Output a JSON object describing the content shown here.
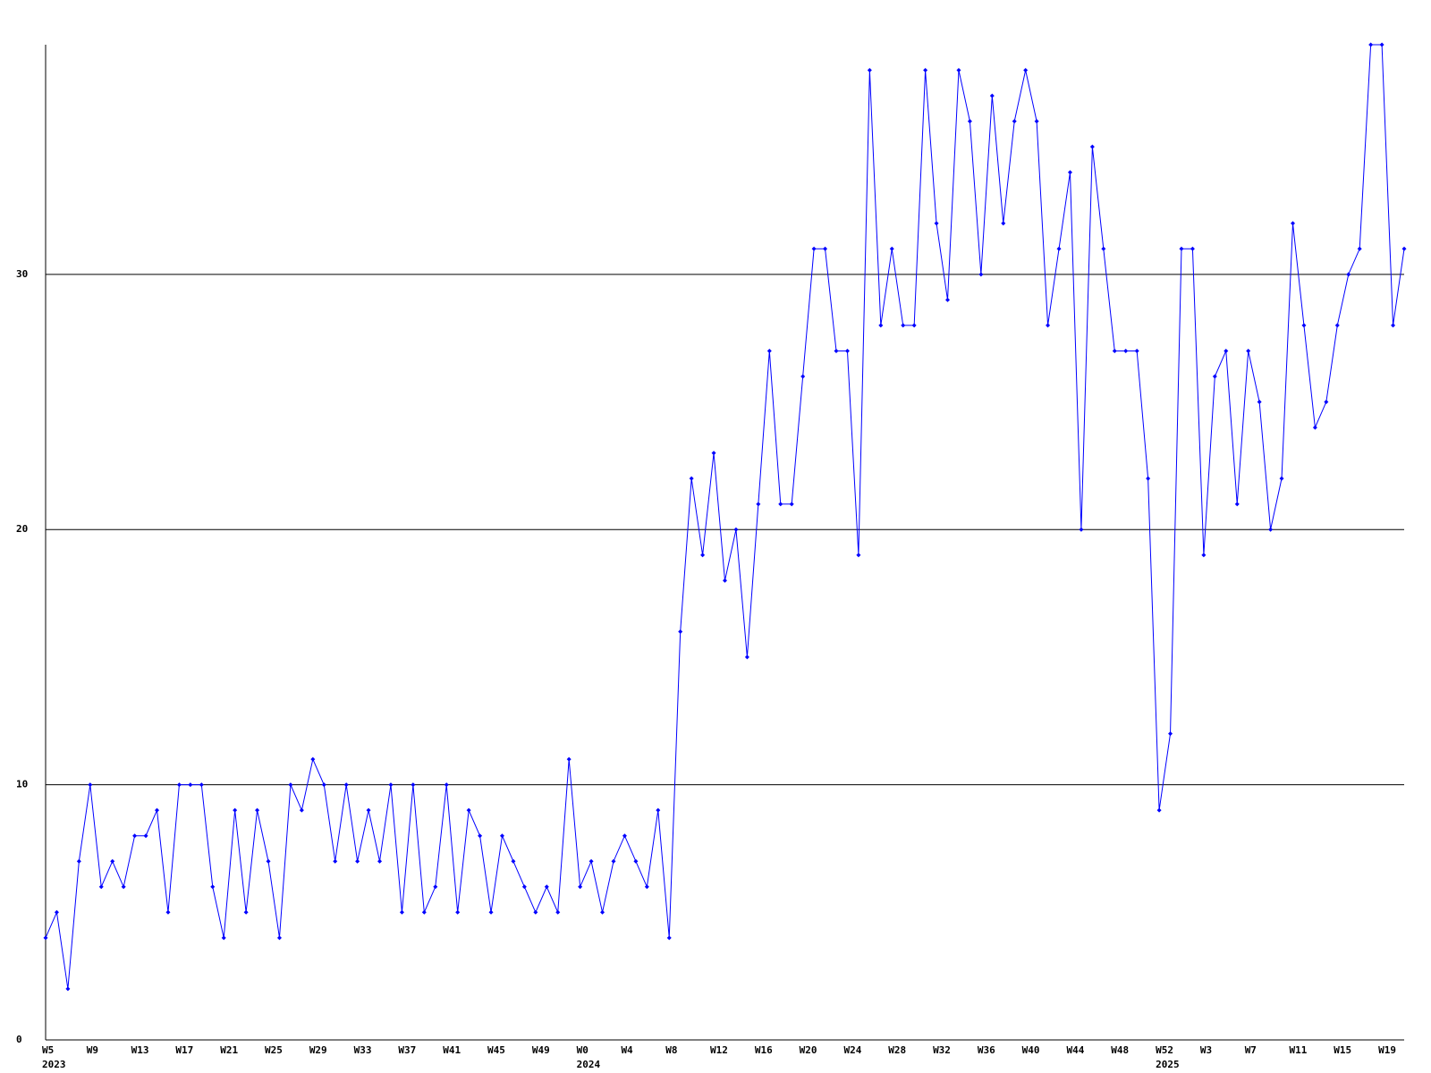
{
  "chart_data": {
    "type": "line",
    "categories": [
      "W5",
      null,
      null,
      null,
      "W9",
      null,
      null,
      null,
      "W13",
      null,
      null,
      null,
      "W17",
      null,
      null,
      null,
      "W21",
      null,
      null,
      null,
      "W25",
      null,
      null,
      null,
      "W29",
      null,
      null,
      null,
      "W33",
      null,
      null,
      null,
      "W37",
      null,
      null,
      null,
      "W41",
      null,
      null,
      null,
      "W45",
      null,
      null,
      null,
      "W49",
      null,
      null,
      null,
      "W0",
      null,
      null,
      null,
      "W4",
      null,
      null,
      null,
      "W8",
      null,
      null,
      null,
      "W12",
      null,
      null,
      null,
      "W16",
      null,
      null,
      null,
      "W20",
      null,
      null,
      null,
      "W24",
      null,
      null,
      null,
      "W28",
      null,
      null,
      null,
      "W32",
      null,
      null,
      null,
      "W36",
      null,
      null,
      null,
      "W40",
      null,
      null,
      null,
      "W44",
      null,
      null,
      null,
      "W48",
      null,
      null,
      null,
      "W52",
      null,
      null,
      null,
      "W3",
      null,
      null,
      null,
      "W7",
      null,
      null,
      null,
      "W11",
      null,
      null,
      null,
      "W15",
      null,
      null,
      null,
      "W19",
      null,
      null
    ],
    "category_years": [
      "2023",
      null,
      null,
      null,
      null,
      null,
      null,
      null,
      null,
      null,
      null,
      null,
      null,
      null,
      null,
      null,
      null,
      null,
      null,
      null,
      null,
      null,
      null,
      null,
      null,
      null,
      null,
      null,
      null,
      null,
      null,
      null,
      null,
      null,
      null,
      null,
      null,
      null,
      null,
      null,
      null,
      null,
      null,
      null,
      null,
      null,
      null,
      null,
      "2024",
      null,
      null,
      null,
      null,
      null,
      null,
      null,
      null,
      null,
      null,
      null,
      null,
      null,
      null,
      null,
      null,
      null,
      null,
      null,
      null,
      null,
      null,
      null,
      null,
      null,
      null,
      null,
      null,
      null,
      null,
      null,
      null,
      null,
      null,
      null,
      null,
      null,
      null,
      null,
      null,
      null,
      null,
      null,
      null,
      null,
      null,
      null,
      null,
      null,
      null,
      null,
      "2025",
      null,
      null,
      null,
      null,
      null,
      null,
      null,
      null,
      null,
      null,
      null,
      null,
      null,
      null,
      null,
      null,
      null,
      null,
      null,
      null,
      null
    ],
    "values": [
      4,
      5,
      2,
      7,
      10,
      6,
      7,
      6,
      8,
      8,
      9,
      5,
      10,
      10,
      10,
      6,
      4,
      9,
      5,
      9,
      7,
      4,
      10,
      9,
      11,
      10,
      7,
      10,
      7,
      9,
      7,
      10,
      5,
      10,
      5,
      6,
      10,
      5,
      9,
      8,
      5,
      8,
      7,
      6,
      5,
      6,
      5,
      11,
      6,
      7,
      5,
      7,
      8,
      7,
      6,
      9,
      4,
      16,
      22,
      19,
      23,
      18,
      20,
      15,
      21,
      27,
      21,
      21,
      26,
      31,
      31,
      27,
      27,
      19,
      38,
      28,
      31,
      28,
      28,
      38,
      32,
      29,
      38,
      36,
      30,
      37,
      32,
      36,
      38,
      36,
      28,
      31,
      34,
      20,
      35,
      31,
      27,
      27,
      27,
      22,
      9,
      12,
      31,
      31,
      19,
      26,
      27,
      21,
      27,
      25,
      20,
      22,
      32,
      28,
      24,
      25,
      28,
      30,
      31,
      39,
      39,
      28,
      31
    ],
    "color": "#0000ff",
    "ylim": [
      0,
      39
    ],
    "yticks": [
      0,
      10,
      20,
      30
    ],
    "grid": true
  }
}
